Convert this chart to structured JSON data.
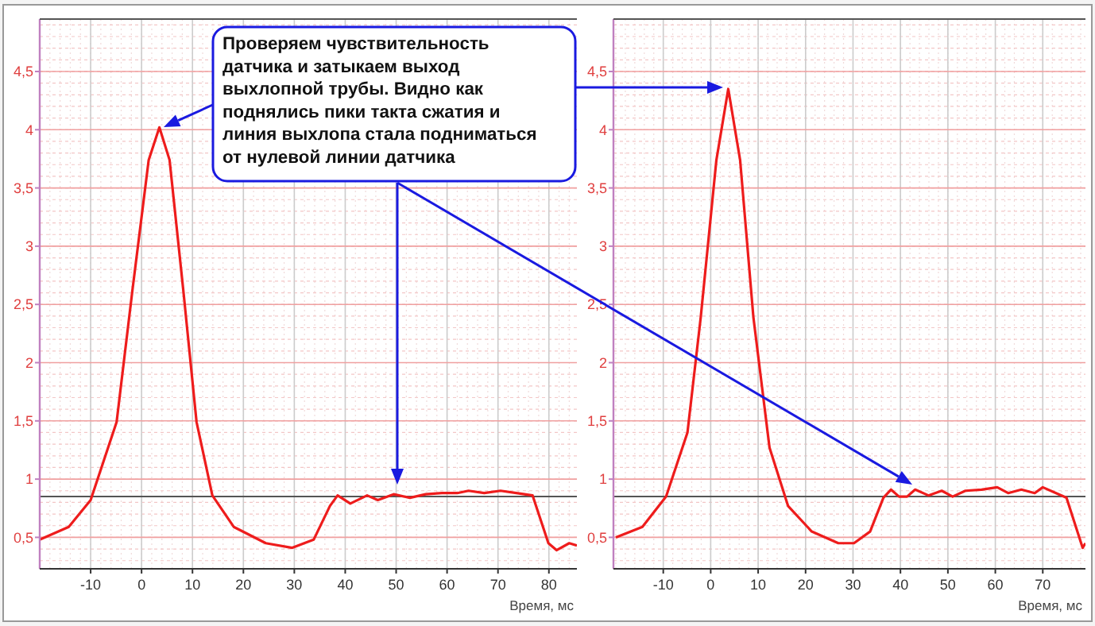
{
  "chart_data": [
    {
      "type": "line",
      "xlabel": "Время, мс",
      "xlim": [
        -20,
        85.5
      ],
      "ylim": [
        0.23,
        4.95
      ],
      "xticks": [
        -10,
        0,
        10,
        20,
        30,
        40,
        50,
        60,
        70,
        80
      ],
      "yticks": [
        {
          "value": 0.5,
          "label": "0,5"
        },
        1,
        {
          "value": 1.5,
          "label": "1,5"
        },
        2,
        {
          "value": 2.5,
          "label": "2,5"
        },
        3,
        {
          "value": 3.5,
          "label": "3,5"
        },
        4,
        {
          "value": 4.5,
          "label": "4,5"
        }
      ],
      "grid": true,
      "marker": "none",
      "line_style": "solid",
      "ref_lines": [
        {
          "axis": "y",
          "value": 0.85,
          "color": "#555555"
        }
      ],
      "annotations": [
        "Проверяем чувствительность\nдатчика и затыкаем выход\nвыхлопной трубы. Видно как\nподнялись пики такта сжатия и\nлиния выхлопа стала подниматься\nот нулевой линии датчика"
      ],
      "series": [
        {
          "color": "#ee1c1c",
          "x": [
            -20,
            -14.3,
            -10,
            -4.9,
            -1.8,
            1.4,
            3.5,
            5.5,
            8.2,
            10.8,
            13.9,
            18.1,
            24.4,
            29.6,
            33.8,
            37,
            38.5,
            41,
            44.3,
            46.4,
            49.5,
            52.7,
            55.8,
            59,
            62,
            64.2,
            67.3,
            70.5,
            73.6,
            76.8,
            79.9,
            81.5,
            84,
            85.5
          ],
          "values": [
            0.48,
            0.59,
            0.82,
            1.49,
            2.62,
            3.74,
            4.02,
            3.74,
            2.62,
            1.49,
            0.86,
            0.59,
            0.45,
            0.41,
            0.48,
            0.77,
            0.86,
            0.79,
            0.86,
            0.82,
            0.87,
            0.84,
            0.87,
            0.88,
            0.88,
            0.9,
            0.88,
            0.9,
            0.88,
            0.86,
            0.45,
            0.39,
            0.45,
            0.43
          ]
        }
      ]
    },
    {
      "type": "line",
      "xlabel": "Время, мс",
      "xlim": [
        -20.5,
        79
      ],
      "ylim": [
        0.23,
        4.95
      ],
      "xticks": [
        -10,
        0,
        10,
        20,
        30,
        40,
        50,
        60,
        70
      ],
      "yticks": [
        {
          "value": 0.5,
          "label": "0,5"
        },
        1,
        {
          "value": 1.5,
          "label": "1,5"
        },
        2,
        {
          "value": 2.5,
          "label": "2,5"
        },
        3,
        {
          "value": 3.5,
          "label": "3,5"
        },
        4,
        {
          "value": 4.5,
          "label": "4,5"
        }
      ],
      "grid": true,
      "marker": "none",
      "line_style": "solid",
      "ref_lines": [
        {
          "axis": "y",
          "value": 0.85,
          "color": "#555555"
        }
      ],
      "series": [
        {
          "color": "#ee1c1c",
          "x": [
            -20,
            -14.4,
            -9.4,
            -4.9,
            -2.1,
            1.2,
            3.7,
            6.2,
            9,
            12.4,
            16.3,
            21.3,
            26.9,
            30.2,
            33.6,
            36.4,
            38,
            39.7,
            41.4,
            43.1,
            45.9,
            48.7,
            51,
            53.7,
            57.1,
            60.4,
            62.7,
            65.5,
            68.3,
            70,
            72.8,
            75,
            78.4,
            79
          ],
          "values": [
            0.5,
            0.59,
            0.85,
            1.4,
            2.39,
            3.74,
            4.35,
            3.74,
            2.39,
            1.27,
            0.77,
            0.55,
            0.45,
            0.45,
            0.55,
            0.84,
            0.91,
            0.85,
            0.85,
            0.91,
            0.86,
            0.9,
            0.85,
            0.9,
            0.91,
            0.93,
            0.88,
            0.91,
            0.88,
            0.93,
            0.88,
            0.84,
            0.41,
            0.45
          ]
        }
      ]
    }
  ]
}
